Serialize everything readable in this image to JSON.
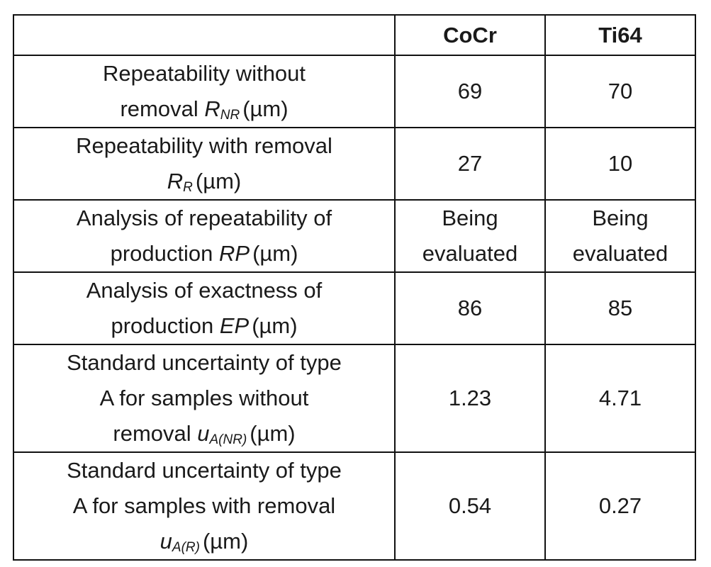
{
  "table": {
    "headers": [
      "",
      "CoCr",
      "Ti64"
    ],
    "rows": [
      {
        "label": {
          "line1": "Repeatability without",
          "line2_prefix": "removal ",
          "symbol": "R",
          "subscript": "NR",
          "unit": "(µm)"
        },
        "cocr": "69",
        "ti64": "70"
      },
      {
        "label": {
          "line1": "Repeatability with removal",
          "line2_prefix": "",
          "symbol": "R",
          "subscript": "R",
          "unit": "(µm)"
        },
        "cocr": "27",
        "ti64": "10"
      },
      {
        "label": {
          "line1": "Analysis of repeatability of",
          "line2_prefix": "production ",
          "symbol": "RP",
          "unit": "(µm)"
        },
        "cocr": {
          "line1": "Being",
          "line2": "evaluated"
        },
        "ti64": {
          "line1": "Being",
          "line2": "evaluated"
        }
      },
      {
        "label": {
          "line1": "Analysis of exactness of",
          "line2_prefix": "production ",
          "symbol": "EP",
          "unit": "(µm)"
        },
        "cocr": "86",
        "ti64": "85"
      },
      {
        "label": {
          "line1": "Standard uncertainty of type",
          "line2": "A for samples without",
          "line3_prefix": "removal ",
          "symbol": "u",
          "subscript": "A(NR)",
          "unit": "(µm)"
        },
        "cocr": "1.23",
        "ti64": "4.71"
      },
      {
        "label": {
          "line1": "Standard uncertainty of type",
          "line2": "A for samples with removal",
          "line3_prefix": "",
          "symbol": "u",
          "subscript": "A(R)",
          "unit": "(µm)"
        },
        "cocr": "0.54",
        "ti64": "0.27"
      }
    ]
  }
}
